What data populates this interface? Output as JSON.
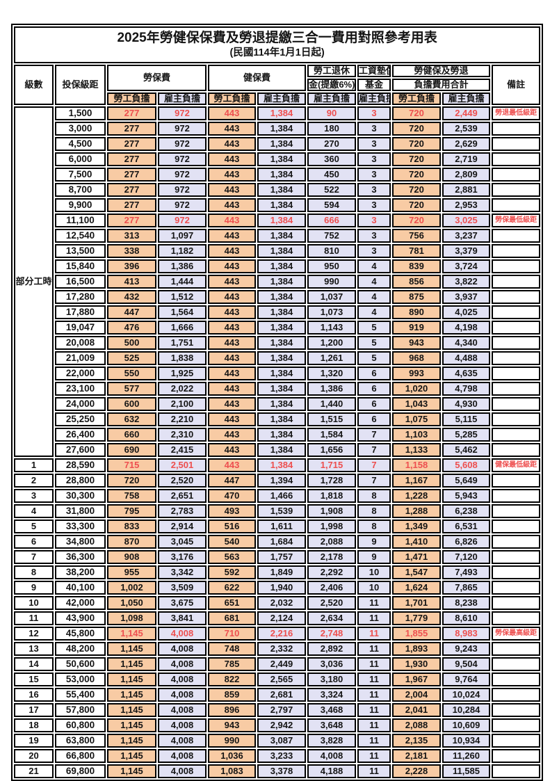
{
  "title": "2025年勞健保保費及勞退提繳三合一費用對照參考用表",
  "subtitle": "(民國114年1月1日起)",
  "colors": {
    "employee_bg": "#F8CBA4",
    "employer_bg": "#E2E2F4",
    "highlight_red": "#EE4F4F",
    "border": "#000000"
  },
  "header": {
    "grade": "級數",
    "bracket": "投保級距",
    "labor_insurance": "勞保費",
    "health_insurance": "健保費",
    "pension_line1": "勞工退休",
    "pension_line2": "金(提繳6%)",
    "wage_fund_line1": "工資墊償",
    "wage_fund_line2": "基金",
    "total_line1": "勞健保及勞退",
    "total_line2": "負擔費用合計",
    "remark": "備註",
    "employee_burden": "勞工負擔",
    "employer_burden": "雇主負擔"
  },
  "part_time_label": "部分工時",
  "rows": [
    {
      "grade": "",
      "bracket": "1,500",
      "values": [
        "277",
        "972",
        "443",
        "1,384",
        "90",
        "3",
        "720",
        "2,449"
      ],
      "note": "勞退最低級距",
      "red": true
    },
    {
      "grade": "",
      "bracket": "3,000",
      "values": [
        "277",
        "972",
        "443",
        "1,384",
        "180",
        "3",
        "720",
        "2,539"
      ],
      "note": "",
      "red": false
    },
    {
      "grade": "",
      "bracket": "4,500",
      "values": [
        "277",
        "972",
        "443",
        "1,384",
        "270",
        "3",
        "720",
        "2,629"
      ],
      "note": "",
      "red": false
    },
    {
      "grade": "",
      "bracket": "6,000",
      "values": [
        "277",
        "972",
        "443",
        "1,384",
        "360",
        "3",
        "720",
        "2,719"
      ],
      "note": "",
      "red": false
    },
    {
      "grade": "",
      "bracket": "7,500",
      "values": [
        "277",
        "972",
        "443",
        "1,384",
        "450",
        "3",
        "720",
        "2,809"
      ],
      "note": "",
      "red": false
    },
    {
      "grade": "",
      "bracket": "8,700",
      "values": [
        "277",
        "972",
        "443",
        "1,384",
        "522",
        "3",
        "720",
        "2,881"
      ],
      "note": "",
      "red": false
    },
    {
      "grade": "",
      "bracket": "9,900",
      "values": [
        "277",
        "972",
        "443",
        "1,384",
        "594",
        "3",
        "720",
        "2,953"
      ],
      "note": "",
      "red": false
    },
    {
      "grade": "",
      "bracket": "11,100",
      "values": [
        "277",
        "972",
        "443",
        "1,384",
        "666",
        "3",
        "720",
        "3,025"
      ],
      "note": "勞保最低級距",
      "red": true
    },
    {
      "grade": "",
      "bracket": "12,540",
      "values": [
        "313",
        "1,097",
        "443",
        "1,384",
        "752",
        "3",
        "756",
        "3,237"
      ],
      "note": "",
      "red": false
    },
    {
      "grade": "",
      "bracket": "13,500",
      "values": [
        "338",
        "1,182",
        "443",
        "1,384",
        "810",
        "3",
        "781",
        "3,379"
      ],
      "note": "",
      "red": false
    },
    {
      "grade": "",
      "bracket": "15,840",
      "values": [
        "396",
        "1,386",
        "443",
        "1,384",
        "950",
        "4",
        "839",
        "3,724"
      ],
      "note": "",
      "red": false
    },
    {
      "grade": "",
      "bracket": "16,500",
      "values": [
        "413",
        "1,444",
        "443",
        "1,384",
        "990",
        "4",
        "856",
        "3,822"
      ],
      "note": "",
      "red": false
    },
    {
      "grade": "",
      "bracket": "17,280",
      "values": [
        "432",
        "1,512",
        "443",
        "1,384",
        "1,037",
        "4",
        "875",
        "3,937"
      ],
      "note": "",
      "red": false
    },
    {
      "grade": "",
      "bracket": "17,880",
      "values": [
        "447",
        "1,564",
        "443",
        "1,384",
        "1,073",
        "4",
        "890",
        "4,025"
      ],
      "note": "",
      "red": false
    },
    {
      "grade": "",
      "bracket": "19,047",
      "values": [
        "476",
        "1,666",
        "443",
        "1,384",
        "1,143",
        "5",
        "919",
        "4,198"
      ],
      "note": "",
      "red": false
    },
    {
      "grade": "",
      "bracket": "20,008",
      "values": [
        "500",
        "1,751",
        "443",
        "1,384",
        "1,200",
        "5",
        "943",
        "4,340"
      ],
      "note": "",
      "red": false
    },
    {
      "grade": "",
      "bracket": "21,009",
      "values": [
        "525",
        "1,838",
        "443",
        "1,384",
        "1,261",
        "5",
        "968",
        "4,488"
      ],
      "note": "",
      "red": false
    },
    {
      "grade": "",
      "bracket": "22,000",
      "values": [
        "550",
        "1,925",
        "443",
        "1,384",
        "1,320",
        "6",
        "993",
        "4,635"
      ],
      "note": "",
      "red": false
    },
    {
      "grade": "",
      "bracket": "23,100",
      "values": [
        "577",
        "2,022",
        "443",
        "1,384",
        "1,386",
        "6",
        "1,020",
        "4,798"
      ],
      "note": "",
      "red": false
    },
    {
      "grade": "",
      "bracket": "24,000",
      "values": [
        "600",
        "2,100",
        "443",
        "1,384",
        "1,440",
        "6",
        "1,043",
        "4,930"
      ],
      "note": "",
      "red": false
    },
    {
      "grade": "",
      "bracket": "25,250",
      "values": [
        "632",
        "2,210",
        "443",
        "1,384",
        "1,515",
        "6",
        "1,075",
        "5,115"
      ],
      "note": "",
      "red": false
    },
    {
      "grade": "",
      "bracket": "26,400",
      "values": [
        "660",
        "2,310",
        "443",
        "1,384",
        "1,584",
        "7",
        "1,103",
        "5,285"
      ],
      "note": "",
      "red": false
    },
    {
      "grade": "",
      "bracket": "27,600",
      "values": [
        "690",
        "2,415",
        "443",
        "1,384",
        "1,656",
        "7",
        "1,133",
        "5,462"
      ],
      "note": "",
      "red": false
    },
    {
      "grade": "1",
      "bracket": "28,590",
      "values": [
        "715",
        "2,501",
        "443",
        "1,384",
        "1,715",
        "7",
        "1,158",
        "5,608"
      ],
      "note": "健保最低級距",
      "red": true
    },
    {
      "grade": "2",
      "bracket": "28,800",
      "values": [
        "720",
        "2,520",
        "447",
        "1,394",
        "1,728",
        "7",
        "1,167",
        "5,649"
      ],
      "note": "",
      "red": false
    },
    {
      "grade": "3",
      "bracket": "30,300",
      "values": [
        "758",
        "2,651",
        "470",
        "1,466",
        "1,818",
        "8",
        "1,228",
        "5,943"
      ],
      "note": "",
      "red": false
    },
    {
      "grade": "4",
      "bracket": "31,800",
      "values": [
        "795",
        "2,783",
        "493",
        "1,539",
        "1,908",
        "8",
        "1,288",
        "6,238"
      ],
      "note": "",
      "red": false
    },
    {
      "grade": "5",
      "bracket": "33,300",
      "values": [
        "833",
        "2,914",
        "516",
        "1,611",
        "1,998",
        "8",
        "1,349",
        "6,531"
      ],
      "note": "",
      "red": false
    },
    {
      "grade": "6",
      "bracket": "34,800",
      "values": [
        "870",
        "3,045",
        "540",
        "1,684",
        "2,088",
        "9",
        "1,410",
        "6,826"
      ],
      "note": "",
      "red": false
    },
    {
      "grade": "7",
      "bracket": "36,300",
      "values": [
        "908",
        "3,176",
        "563",
        "1,757",
        "2,178",
        "9",
        "1,471",
        "7,120"
      ],
      "note": "",
      "red": false
    },
    {
      "grade": "8",
      "bracket": "38,200",
      "values": [
        "955",
        "3,342",
        "592",
        "1,849",
        "2,292",
        "10",
        "1,547",
        "7,493"
      ],
      "note": "",
      "red": false
    },
    {
      "grade": "9",
      "bracket": "40,100",
      "values": [
        "1,002",
        "3,509",
        "622",
        "1,940",
        "2,406",
        "10",
        "1,624",
        "7,865"
      ],
      "note": "",
      "red": false
    },
    {
      "grade": "10",
      "bracket": "42,000",
      "values": [
        "1,050",
        "3,675",
        "651",
        "2,032",
        "2,520",
        "11",
        "1,701",
        "8,238"
      ],
      "note": "",
      "red": false
    },
    {
      "grade": "11",
      "bracket": "43,900",
      "values": [
        "1,098",
        "3,841",
        "681",
        "2,124",
        "2,634",
        "11",
        "1,779",
        "8,610"
      ],
      "note": "",
      "red": false
    },
    {
      "grade": "12",
      "bracket": "45,800",
      "values": [
        "1,145",
        "4,008",
        "710",
        "2,216",
        "2,748",
        "11",
        "1,855",
        "8,983"
      ],
      "note": "勞保最高級距",
      "red": true
    },
    {
      "grade": "13",
      "bracket": "48,200",
      "values": [
        "1,145",
        "4,008",
        "748",
        "2,332",
        "2,892",
        "11",
        "1,893",
        "9,243"
      ],
      "note": "",
      "red": false
    },
    {
      "grade": "14",
      "bracket": "50,600",
      "values": [
        "1,145",
        "4,008",
        "785",
        "2,449",
        "3,036",
        "11",
        "1,930",
        "9,504"
      ],
      "note": "",
      "red": false
    },
    {
      "grade": "15",
      "bracket": "53,000",
      "values": [
        "1,145",
        "4,008",
        "822",
        "2,565",
        "3,180",
        "11",
        "1,967",
        "9,764"
      ],
      "note": "",
      "red": false
    },
    {
      "grade": "16",
      "bracket": "55,400",
      "values": [
        "1,145",
        "4,008",
        "859",
        "2,681",
        "3,324",
        "11",
        "2,004",
        "10,024"
      ],
      "note": "",
      "red": false
    },
    {
      "grade": "17",
      "bracket": "57,800",
      "values": [
        "1,145",
        "4,008",
        "896",
        "2,797",
        "3,468",
        "11",
        "2,041",
        "10,284"
      ],
      "note": "",
      "red": false
    },
    {
      "grade": "18",
      "bracket": "60,800",
      "values": [
        "1,145",
        "4,008",
        "943",
        "2,942",
        "3,648",
        "11",
        "2,088",
        "10,609"
      ],
      "note": "",
      "red": false
    },
    {
      "grade": "19",
      "bracket": "63,800",
      "values": [
        "1,145",
        "4,008",
        "990",
        "3,087",
        "3,828",
        "11",
        "2,135",
        "10,934"
      ],
      "note": "",
      "red": false
    },
    {
      "grade": "20",
      "bracket": "66,800",
      "values": [
        "1,145",
        "4,008",
        "1,036",
        "3,233",
        "4,008",
        "11",
        "2,181",
        "11,260"
      ],
      "note": "",
      "red": false
    },
    {
      "grade": "21",
      "bracket": "69,800",
      "values": [
        "1,145",
        "4,008",
        "1,083",
        "3,378",
        "4,188",
        "11",
        "2,228",
        "11,585"
      ],
      "note": "",
      "red": false
    }
  ]
}
